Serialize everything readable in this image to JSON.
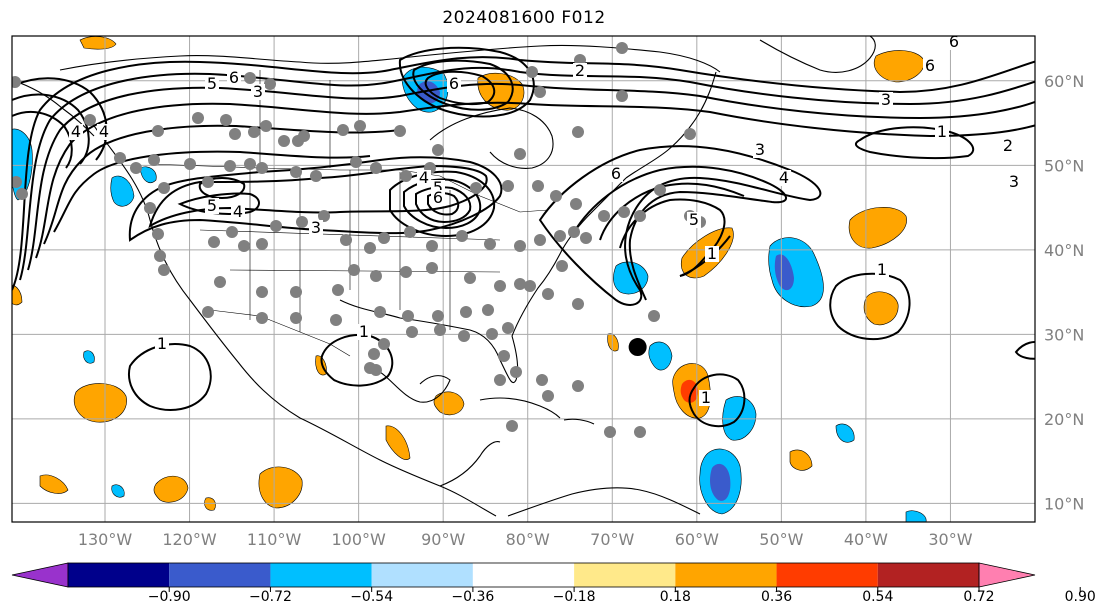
{
  "title": "2024081600 F012",
  "lat_labels": [
    {
      "text": "60°N",
      "lat": 60
    },
    {
      "text": "50°N",
      "lat": 50
    },
    {
      "text": "40°N",
      "lat": 40
    },
    {
      "text": "30°N",
      "lat": 30
    },
    {
      "text": "20°N",
      "lat": 20
    },
    {
      "text": "10°N",
      "lat": 10
    }
  ],
  "lon_labels": [
    {
      "text": "130°W",
      "lon": -130
    },
    {
      "text": "120°W",
      "lon": -120
    },
    {
      "text": "110°W",
      "lon": -110
    },
    {
      "text": "100°W",
      "lon": -100
    },
    {
      "text": "90°W",
      "lon": -90
    },
    {
      "text": "80°W",
      "lon": -80
    },
    {
      "text": "70°W",
      "lon": -70
    },
    {
      "text": "60°W",
      "lon": -60
    },
    {
      "text": "50°W",
      "lon": -50
    },
    {
      "text": "40°W",
      "lon": -40
    },
    {
      "text": "30°W",
      "lon": -30
    }
  ],
  "colorbar": {
    "ticks": [
      "−0.90",
      "−0.72",
      "−0.54",
      "−0.36",
      "−0.18",
      "0.18",
      "0.36",
      "0.54",
      "0.72",
      "0.90"
    ],
    "colors": [
      "#9932cc",
      "#00008b",
      "#3a5bcc",
      "#00bfff",
      "#b0e0ff",
      "#ffffff",
      "#ffe98a",
      "#ffa500",
      "#ff3c00",
      "#b22222",
      "#ff7fb0"
    ]
  },
  "contour_labels": [
    "5",
    "6",
    "3",
    "4",
    "4",
    "2",
    "6",
    "5",
    "4",
    "3",
    "4",
    "5",
    "6",
    "6",
    "2",
    "6",
    "6",
    "3",
    "1",
    "2",
    "3",
    "3",
    "4",
    "5",
    "1",
    "1",
    "1",
    "1",
    "1"
  ],
  "marker": {
    "lat": 28.5,
    "lon": -67,
    "color": "#000000"
  }
}
